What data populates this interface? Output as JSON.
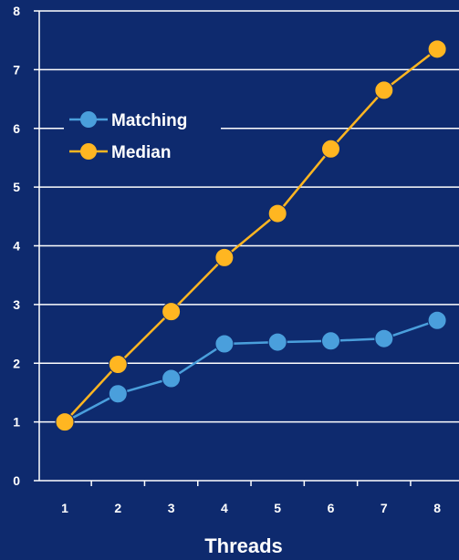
{
  "chart_data": {
    "type": "line",
    "x": [
      1,
      2,
      3,
      4,
      5,
      6,
      7,
      8
    ],
    "series": [
      {
        "name": "Matching",
        "color": "#4a9fdc",
        "values": [
          1.0,
          1.48,
          1.74,
          2.33,
          2.36,
          2.38,
          2.42,
          2.73
        ]
      },
      {
        "name": "Median",
        "color": "#ffb621",
        "values": [
          1.0,
          1.98,
          2.88,
          3.8,
          4.55,
          5.65,
          6.65,
          7.35
        ]
      }
    ],
    "xlabel": "Threads",
    "ylabel": "",
    "ylim": [
      0,
      8
    ],
    "yticks": [
      "0",
      "1",
      "2",
      "3",
      "4",
      "5",
      "6",
      "7",
      "8"
    ],
    "xticks": [
      "1",
      "2",
      "3",
      "4",
      "5",
      "6",
      "7",
      "8"
    ],
    "grid": true,
    "legend_position": "upper-left",
    "colors": {
      "background": "#0e2a6e",
      "grid": "#ffffff",
      "text": "#ffffff"
    }
  }
}
